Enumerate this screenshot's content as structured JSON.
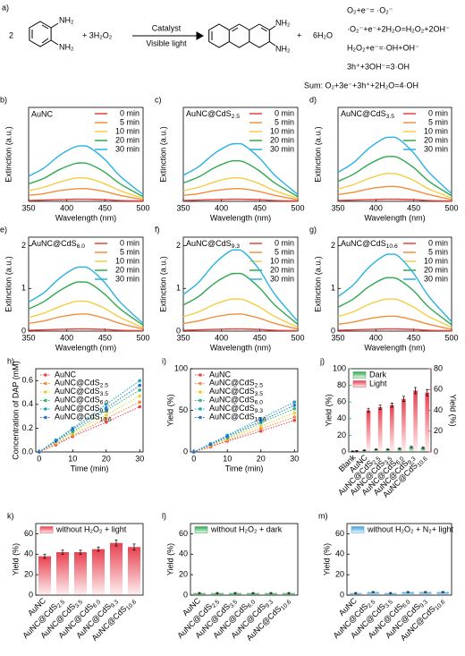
{
  "scheme": {
    "panel_label": "a)",
    "coefficient": "2",
    "reactant_groups": [
      "NH₂",
      "NH₂"
    ],
    "reagent": "+ 3H₂O₂",
    "catalyst": "Catalyst",
    "condition": "Visible light",
    "product_groups": [
      "NH₂",
      "NH₂"
    ],
    "plus": "+",
    "water": "6H₂O",
    "equations": [
      "O₂+e⁻= ·O₂⁻",
      "·O₂⁻+e⁻+2H₂O=H₂O₂+2OH⁻",
      "H₂O₂+e⁻=·OH+OH⁻",
      "3h⁺+3OH⁻=3·OH"
    ],
    "sum": "Sum:  O₂+3e⁻+3h⁺+2H₂O=4·OH"
  },
  "chart_data": [
    {
      "type": "line",
      "panel_label": "b)",
      "title": "AuNC",
      "xlabel": "Wavelength (nm)",
      "ylabel": "Extinction (a.u.)",
      "x": [
        350,
        370,
        390,
        410,
        420,
        430,
        450,
        470,
        500
      ],
      "xlim": [
        350,
        500
      ],
      "xticks": [
        350,
        400,
        450,
        500
      ],
      "ylim": [
        0,
        2.2
      ],
      "series": [
        {
          "name": "0 min",
          "color": "#e8413a",
          "values": [
            0.02,
            0.03,
            0.04,
            0.05,
            0.05,
            0.05,
            0.04,
            0.02,
            0.01
          ]
        },
        {
          "name": "5 min",
          "color": "#f28e3b",
          "values": [
            0.14,
            0.18,
            0.25,
            0.29,
            0.3,
            0.29,
            0.23,
            0.14,
            0.04
          ]
        },
        {
          "name": "10 min",
          "color": "#f5cd45",
          "values": [
            0.25,
            0.33,
            0.45,
            0.54,
            0.55,
            0.53,
            0.41,
            0.25,
            0.07
          ]
        },
        {
          "name": "20 min",
          "color": "#2ea84f",
          "values": [
            0.41,
            0.54,
            0.74,
            0.88,
            0.9,
            0.87,
            0.68,
            0.41,
            0.11
          ]
        },
        {
          "name": "30 min",
          "color": "#27b2e3",
          "values": [
            0.59,
            0.78,
            1.07,
            1.27,
            1.3,
            1.26,
            0.98,
            0.59,
            0.16
          ]
        }
      ]
    },
    {
      "type": "line",
      "panel_label": "c)",
      "title": "AuNC@CdS2.5",
      "xlabel": "Wavelength (nm)",
      "ylabel": "Extinction (a.u.)",
      "x": [
        350,
        370,
        390,
        410,
        420,
        430,
        450,
        470,
        500
      ],
      "xlim": [
        350,
        500
      ],
      "xticks": [
        350,
        400,
        450,
        500
      ],
      "ylim": [
        0,
        2.2
      ],
      "series": [
        {
          "name": "0 min",
          "color": "#e8413a",
          "values": [
            0.02,
            0.03,
            0.04,
            0.05,
            0.05,
            0.05,
            0.04,
            0.02,
            0.01
          ]
        },
        {
          "name": "5 min",
          "color": "#f28e3b",
          "values": [
            0.14,
            0.18,
            0.25,
            0.29,
            0.3,
            0.29,
            0.23,
            0.14,
            0.04
          ]
        },
        {
          "name": "10 min",
          "color": "#f5cd45",
          "values": [
            0.25,
            0.33,
            0.45,
            0.54,
            0.55,
            0.53,
            0.41,
            0.25,
            0.07
          ]
        },
        {
          "name": "20 min",
          "color": "#2ea84f",
          "values": [
            0.43,
            0.57,
            0.78,
            0.93,
            0.95,
            0.92,
            0.71,
            0.43,
            0.11
          ]
        },
        {
          "name": "30 min",
          "color": "#27b2e3",
          "values": [
            0.61,
            0.81,
            1.11,
            1.32,
            1.35,
            1.31,
            1.01,
            0.61,
            0.16
          ]
        }
      ]
    },
    {
      "type": "line",
      "panel_label": "d)",
      "title": "AuNC@CdS3.5",
      "xlabel": "Wavelength (nm)",
      "ylabel": "Extinction (a.u.)",
      "x": [
        350,
        370,
        390,
        410,
        420,
        430,
        450,
        470,
        500
      ],
      "xlim": [
        350,
        500
      ],
      "xticks": [
        350,
        400,
        450,
        500
      ],
      "ylim": [
        0,
        2.2
      ],
      "series": [
        {
          "name": "0 min",
          "color": "#e8413a",
          "values": [
            0.02,
            0.03,
            0.04,
            0.05,
            0.05,
            0.05,
            0.04,
            0.02,
            0.01
          ]
        },
        {
          "name": "5 min",
          "color": "#f28e3b",
          "values": [
            0.16,
            0.21,
            0.29,
            0.34,
            0.35,
            0.34,
            0.26,
            0.16,
            0.04
          ]
        },
        {
          "name": "10 min",
          "color": "#f5cd45",
          "values": [
            0.29,
            0.39,
            0.53,
            0.64,
            0.65,
            0.63,
            0.49,
            0.29,
            0.08
          ]
        },
        {
          "name": "20 min",
          "color": "#2ea84f",
          "values": [
            0.47,
            0.63,
            0.86,
            1.03,
            1.05,
            1.02,
            0.79,
            0.47,
            0.13
          ]
        },
        {
          "name": "30 min",
          "color": "#27b2e3",
          "values": [
            0.68,
            0.9,
            1.23,
            1.47,
            1.5,
            1.46,
            1.13,
            0.68,
            0.18
          ]
        }
      ]
    },
    {
      "type": "line",
      "panel_label": "e)",
      "title": "AuNC@CdS6.0",
      "xlabel": "Wavelength (nm)",
      "ylabel": "Extinction (a.u.)",
      "x": [
        350,
        370,
        390,
        410,
        420,
        430,
        450,
        470,
        500
      ],
      "xlim": [
        350,
        500
      ],
      "xticks": [
        350,
        400,
        450,
        500
      ],
      "ylim": [
        0,
        2.2
      ],
      "yticks": [
        0,
        1,
        2
      ],
      "series": [
        {
          "name": "0 min",
          "color": "#e8413a",
          "values": [
            0.02,
            0.03,
            0.04,
            0.05,
            0.05,
            0.05,
            0.04,
            0.02,
            0.01
          ]
        },
        {
          "name": "5 min",
          "color": "#f28e3b",
          "values": [
            0.18,
            0.24,
            0.33,
            0.39,
            0.4,
            0.39,
            0.3,
            0.18,
            0.05
          ]
        },
        {
          "name": "10 min",
          "color": "#f5cd45",
          "values": [
            0.32,
            0.42,
            0.57,
            0.69,
            0.7,
            0.68,
            0.53,
            0.32,
            0.08
          ]
        },
        {
          "name": "20 min",
          "color": "#2ea84f",
          "values": [
            0.52,
            0.69,
            0.94,
            1.13,
            1.15,
            1.12,
            0.86,
            0.52,
            0.14
          ]
        },
        {
          "name": "30 min",
          "color": "#27b2e3",
          "values": [
            0.68,
            0.9,
            1.23,
            1.47,
            1.5,
            1.46,
            1.13,
            0.68,
            0.18
          ]
        }
      ]
    },
    {
      "type": "line",
      "panel_label": "f)",
      "title": "AuNC@CdS9.3",
      "xlabel": "Wavelength (nm)",
      "ylabel": "Extinction (a.u.)",
      "x": [
        350,
        370,
        390,
        410,
        420,
        430,
        450,
        470,
        500
      ],
      "xlim": [
        350,
        500
      ],
      "xticks": [
        350,
        400,
        450,
        500
      ],
      "ylim": [
        0,
        2.2
      ],
      "yticks": [
        0,
        1,
        2
      ],
      "series": [
        {
          "name": "0 min",
          "color": "#e8413a",
          "values": [
            0.02,
            0.03,
            0.04,
            0.05,
            0.05,
            0.05,
            0.04,
            0.02,
            0.01
          ]
        },
        {
          "name": "5 min",
          "color": "#f28e3b",
          "values": [
            0.18,
            0.24,
            0.33,
            0.39,
            0.4,
            0.39,
            0.3,
            0.18,
            0.05
          ]
        },
        {
          "name": "10 min",
          "color": "#f5cd45",
          "values": [
            0.34,
            0.45,
            0.62,
            0.74,
            0.75,
            0.73,
            0.56,
            0.34,
            0.09
          ]
        },
        {
          "name": "20 min",
          "color": "#2ea84f",
          "values": [
            0.61,
            0.81,
            1.11,
            1.32,
            1.35,
            1.31,
            1.01,
            0.61,
            0.16
          ]
        },
        {
          "name": "30 min",
          "color": "#27b2e3",
          "values": [
            0.86,
            1.14,
            1.56,
            1.86,
            1.9,
            1.84,
            1.43,
            0.86,
            0.23
          ]
        }
      ]
    },
    {
      "type": "line",
      "panel_label": "g)",
      "title": "AuNC@CdS10.6",
      "xlabel": "Wavelength (nm)",
      "ylabel": "Extinction (a.u.)",
      "x": [
        350,
        370,
        390,
        410,
        420,
        430,
        450,
        470,
        500
      ],
      "xlim": [
        350,
        500
      ],
      "xticks": [
        350,
        400,
        450,
        500
      ],
      "ylim": [
        0,
        2.2
      ],
      "yticks": [
        0,
        1,
        2
      ],
      "series": [
        {
          "name": "0 min",
          "color": "#e8413a",
          "values": [
            0.02,
            0.03,
            0.04,
            0.05,
            0.05,
            0.05,
            0.04,
            0.02,
            0.01
          ]
        },
        {
          "name": "5 min",
          "color": "#f28e3b",
          "values": [
            0.16,
            0.21,
            0.29,
            0.34,
            0.35,
            0.34,
            0.26,
            0.16,
            0.04
          ]
        },
        {
          "name": "10 min",
          "color": "#f5cd45",
          "values": [
            0.34,
            0.45,
            0.62,
            0.74,
            0.75,
            0.73,
            0.56,
            0.34,
            0.09
          ]
        },
        {
          "name": "20 min",
          "color": "#2ea84f",
          "values": [
            0.56,
            0.75,
            1.03,
            1.23,
            1.25,
            1.21,
            0.94,
            0.56,
            0.15
          ]
        },
        {
          "name": "30 min",
          "color": "#27b2e3",
          "values": [
            0.81,
            1.08,
            1.48,
            1.76,
            1.8,
            1.75,
            1.35,
            0.81,
            0.22
          ]
        }
      ]
    },
    {
      "type": "scatter",
      "panel_label": "h)",
      "xlabel": "Time (min)",
      "ylabel": "Concentration of DAP (mM)",
      "x": [
        0,
        5,
        10,
        20,
        30
      ],
      "xlim": [
        -1,
        31
      ],
      "xticks": [
        0,
        10,
        20,
        30
      ],
      "ylim": [
        0,
        0.7
      ],
      "yticks": [
        {
          "value": 0,
          "label": "0.0"
        },
        0.2,
        0.4,
        0.6
      ],
      "series": [
        {
          "name": "AuNC",
          "color": "#e8414f",
          "values": [
            0,
            0.06,
            0.13,
            0.25,
            0.38
          ]
        },
        {
          "name": "AuNC@CdS2.5",
          "color": "#f28e3b",
          "values": [
            0,
            0.07,
            0.14,
            0.28,
            0.42
          ]
        },
        {
          "name": "AuNC@CdS3.5",
          "color": "#e6d23a",
          "values": [
            0,
            0.08,
            0.16,
            0.31,
            0.47
          ]
        },
        {
          "name": "AuNC@CdS6.0",
          "color": "#2eb872",
          "values": [
            0,
            0.09,
            0.17,
            0.35,
            0.52
          ]
        },
        {
          "name": "AuNC@CdS9.3",
          "color": "#1aa6b7",
          "values": [
            0,
            0.1,
            0.2,
            0.4,
            0.6
          ]
        },
        {
          "name": "AuNC@CdS10.6",
          "color": "#2a6fd6",
          "values": [
            0,
            0.09,
            0.19,
            0.37,
            0.56
          ]
        }
      ]
    },
    {
      "type": "scatter",
      "panel_label": "i)",
      "xlabel": "Time (min)",
      "ylabel": "Yield (%)",
      "x": [
        0,
        5,
        10,
        20,
        30
      ],
      "xlim": [
        -1,
        31
      ],
      "xticks": [
        0,
        10,
        20,
        30
      ],
      "ylim": [
        0,
        100
      ],
      "yticks": [
        0,
        50,
        100
      ],
      "series": [
        {
          "name": "AuNC",
          "color": "#e8414f",
          "values": [
            0,
            6,
            13,
            25,
            38
          ]
        },
        {
          "name": "AuNC@CdS2.5",
          "color": "#f28e3b",
          "values": [
            0,
            7,
            14,
            28,
            42
          ]
        },
        {
          "name": "AuNC@CdS3.5",
          "color": "#e6d23a",
          "values": [
            0,
            8,
            16,
            31,
            47
          ]
        },
        {
          "name": "AuNC@CdS6.0",
          "color": "#2eb872",
          "values": [
            0,
            9,
            17,
            35,
            52
          ]
        },
        {
          "name": "AuNC@CdS9.3",
          "color": "#1aa6b7",
          "values": [
            0,
            10,
            20,
            40,
            60
          ]
        },
        {
          "name": "AuNC@CdS10.6",
          "color": "#2a6fd6",
          "values": [
            0,
            9,
            19,
            37,
            56
          ]
        }
      ]
    },
    {
      "type": "bar",
      "panel_label": "j)",
      "ylabel": "Yield (%)",
      "y2label": "Yield (%)",
      "categories": [
        "Blank",
        "AuNC",
        "AuNC@CdS2.5",
        "AuNC@CdS3.5",
        "AuNC@CdS6.0",
        "AuNC@CdS9.3",
        "AuNC@CdS10.6"
      ],
      "ylim": [
        0,
        100
      ],
      "yticks": [
        0,
        20,
        40,
        60,
        80,
        100
      ],
      "y2lim": [
        0,
        80
      ],
      "y2ticks": [
        0,
        20,
        40,
        60,
        80
      ],
      "series": [
        {
          "name": "Dark",
          "color": "#2ea84f",
          "values": [
            1,
            2,
            3,
            3,
            4,
            6,
            5
          ],
          "errors": [
            0.3,
            0.5,
            0.5,
            0.5,
            0.6,
            0.8,
            0.8
          ]
        },
        {
          "name": "Light",
          "color": "#e8414f",
          "axis": "y2",
          "values": [
            1,
            40,
            43,
            45,
            51,
            59,
            57
          ],
          "errors": [
            0.3,
            2,
            2,
            2,
            2.5,
            3,
            3
          ]
        }
      ]
    },
    {
      "type": "bar",
      "panel_label": "k)",
      "ylabel": "Yield (%)",
      "categories": [
        "AuNC",
        "AuNC@CdS2.5",
        "AuNC@CdS3.5",
        "AuNC@CdS6.0",
        "AuNC@CdS9.3",
        "AuNC@CdS10.6"
      ],
      "ylim": [
        0,
        70
      ],
      "yticks": [
        0,
        20,
        40,
        60
      ],
      "series": [
        {
          "name": "without H₂O₂ + light",
          "color": "#e8414f",
          "values": [
            38,
            42,
            42,
            45,
            51,
            47
          ],
          "errors": [
            2,
            2,
            2,
            2,
            3,
            3
          ]
        }
      ]
    },
    {
      "type": "bar",
      "panel_label": "l)",
      "ylabel": "Yield (%)",
      "categories": [
        "AuNC",
        "AuNC@CdS2.5",
        "AuNC@CdS3.5",
        "AuNC@CdS6.0",
        "AuNC@CdS9.3",
        "AuNC@CdS10.6"
      ],
      "ylim": [
        0,
        70
      ],
      "yticks": [
        0,
        20,
        40,
        60
      ],
      "series": [
        {
          "name": "without H₂O₂ + dark",
          "color": "#2ea84f",
          "values": [
            2,
            2,
            2,
            2,
            2,
            2
          ],
          "errors": [
            0.5,
            0.5,
            0.5,
            0.5,
            0.5,
            0.5
          ]
        }
      ]
    },
    {
      "type": "bar",
      "panel_label": "m)",
      "ylabel": "Yield (%)",
      "categories": [
        "AuNC",
        "AuNC@CdS2.5",
        "AuNC@CdS3.5",
        "AuNC@CdS6.0",
        "AuNC@CdS9.3",
        "AuNC@CdS10.6"
      ],
      "ylim": [
        0,
        70
      ],
      "yticks": [
        0,
        20,
        40,
        60
      ],
      "series": [
        {
          "name": "without H₂O₂ + N₂+ light",
          "color": "#3fa0e0",
          "values": [
            2,
            3,
            2,
            3,
            3,
            3
          ],
          "errors": [
            0.5,
            0.5,
            0.5,
            0.5,
            0.5,
            0.5
          ]
        }
      ]
    }
  ]
}
